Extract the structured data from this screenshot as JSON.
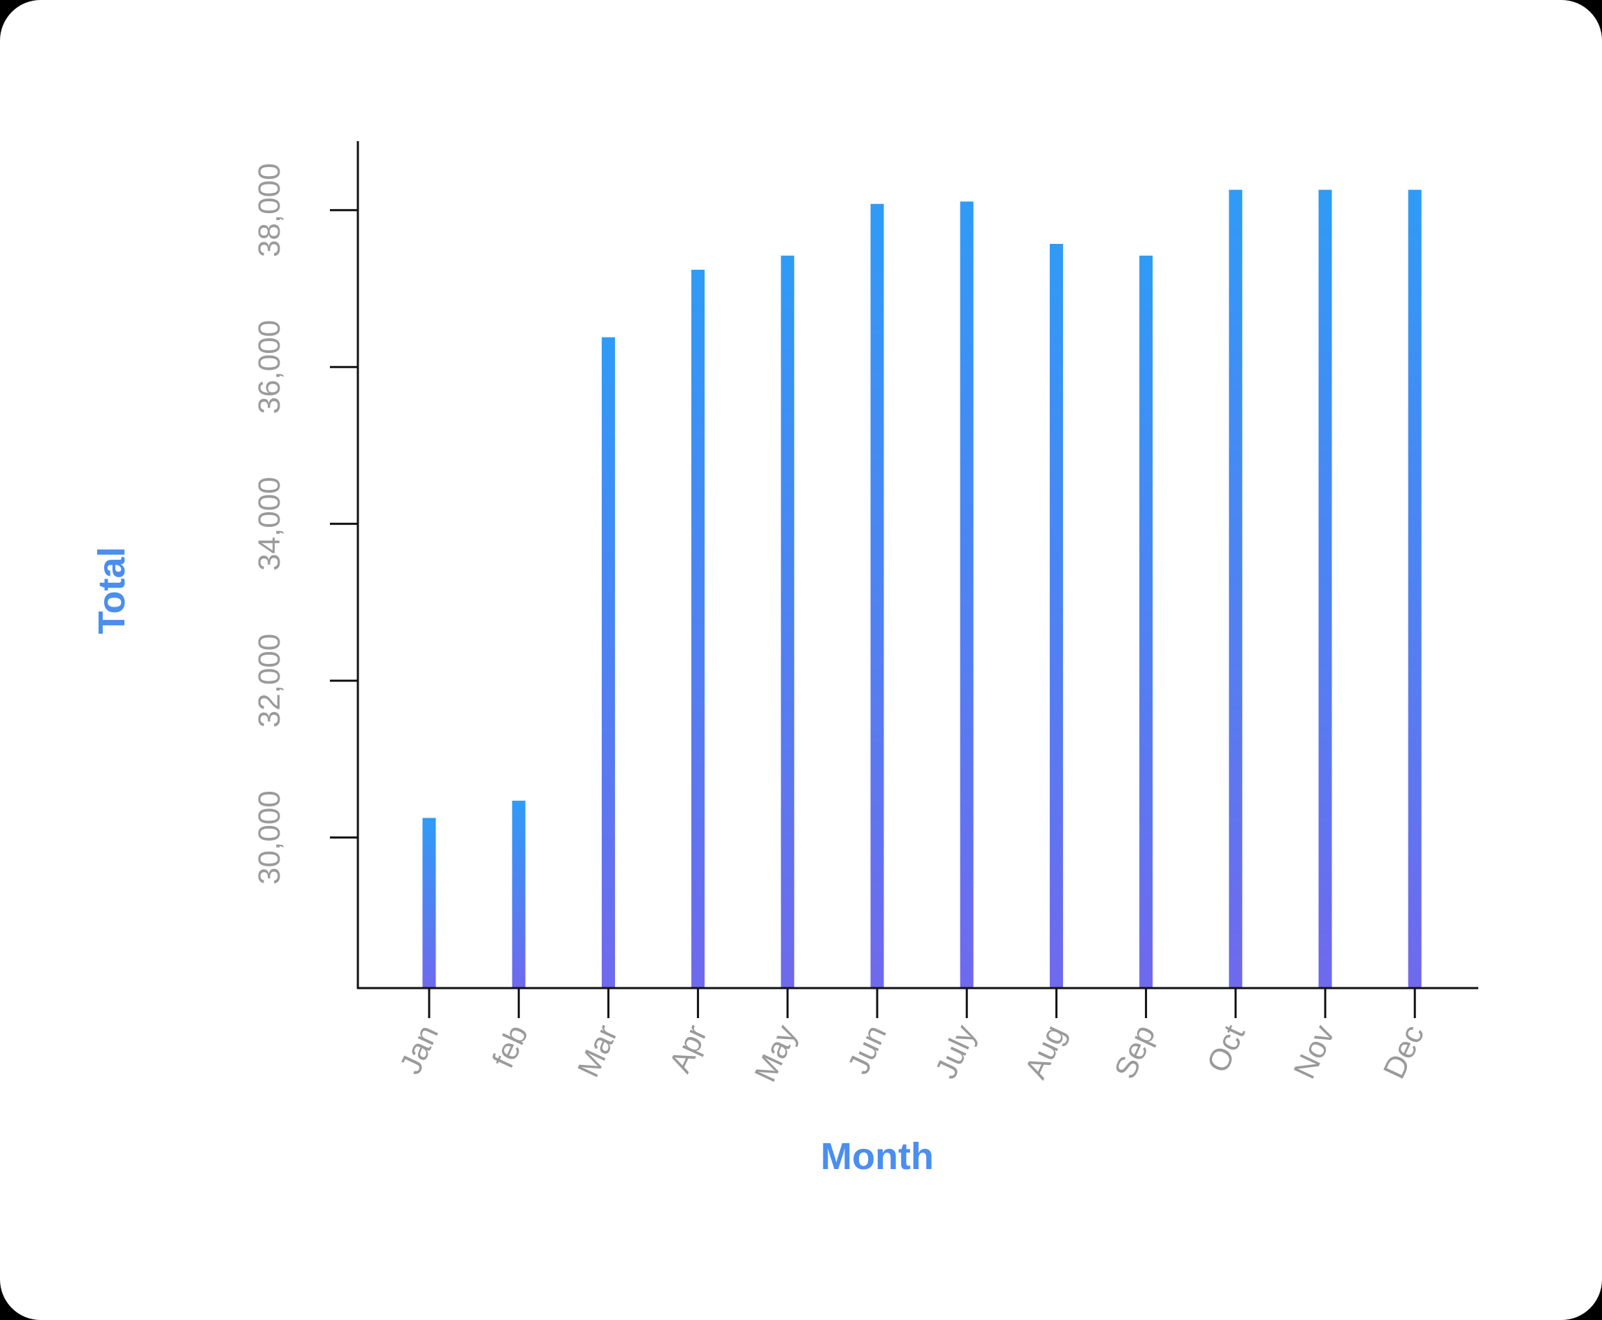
{
  "chart_data": {
    "type": "bar",
    "title": "",
    "xlabel": "Month",
    "ylabel": "Total",
    "categories": [
      "Jan",
      "feb",
      "Mar",
      "Apr",
      "May",
      "Jun",
      "July",
      "Aug",
      "Sep",
      "Oct",
      "Nov",
      "Dec"
    ],
    "values": [
      30250,
      30470,
      36380,
      37240,
      37420,
      38080,
      38110,
      37570,
      37420,
      38260,
      38260,
      38260
    ],
    "ylim": [
      28080,
      38880
    ],
    "yticks": [
      30000,
      32000,
      34000,
      36000,
      38000
    ],
    "ytick_labels": [
      "30,000",
      "32,000",
      "34,000",
      "36,000",
      "38,000"
    ],
    "grid": false,
    "legend": "none",
    "colors": {
      "bar_top": "#2f9bf7",
      "bar_bottom": "#6f69ee",
      "axis_title": "#4a8ef0",
      "tick_label": "#9a9a9a",
      "axis_line": "#111111"
    }
  }
}
